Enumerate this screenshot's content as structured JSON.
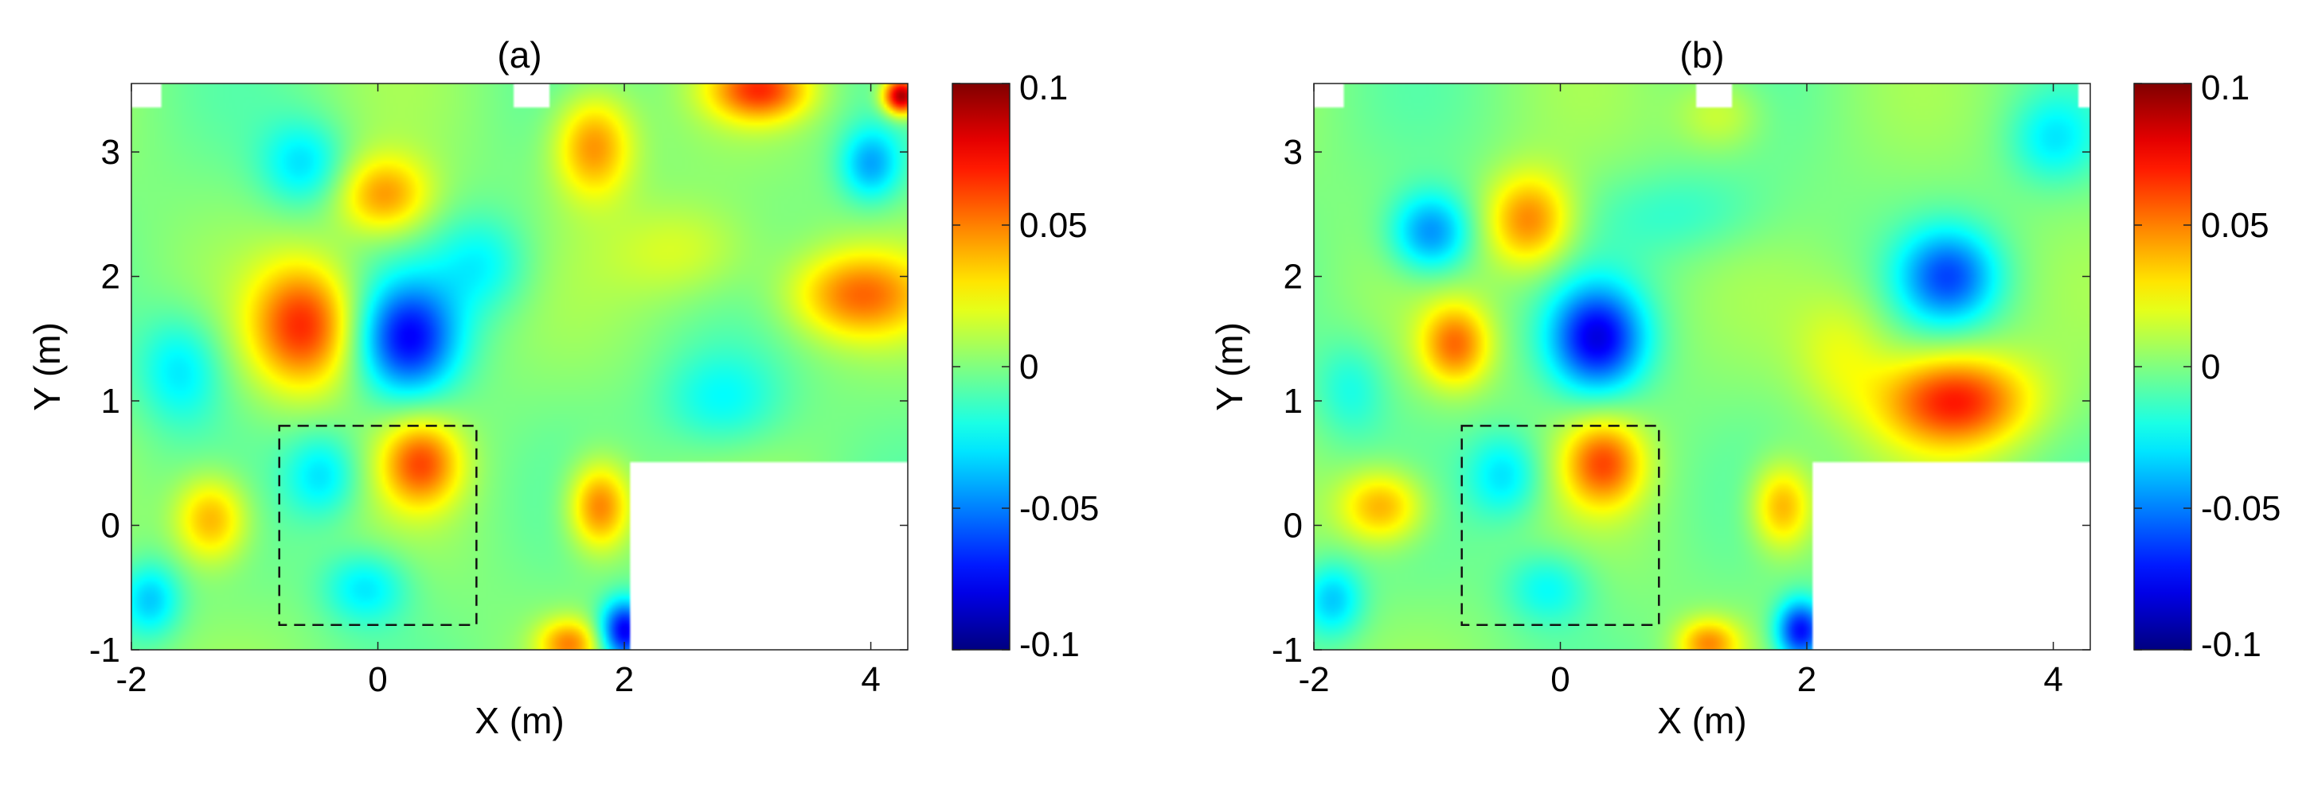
{
  "chart_data": [
    {
      "type": "heatmap",
      "title": "(a)",
      "xlabel": "X (m)",
      "ylabel": "Y (m)",
      "xlim": [
        -2,
        4.3
      ],
      "ylim": [
        -1,
        3.55
      ],
      "xticks": [
        -2,
        0,
        2,
        4
      ],
      "yticks": [
        -1,
        0,
        1,
        2,
        3
      ],
      "grid": false,
      "colorbar": {
        "clim": [
          -0.1,
          0.1
        ],
        "ticks": [
          0.1,
          0.05,
          0,
          -0.05,
          -0.1
        ],
        "tick_labels": [
          "0.1",
          "0.05",
          "0",
          "-0.05",
          "-0.1"
        ],
        "colormap": "jet"
      },
      "blank_regions": [
        [
          2.05,
          4.3,
          -1,
          0.52
        ],
        [
          -2,
          -1.75,
          3.35,
          3.55
        ],
        [
          1.1,
          1.4,
          3.35,
          3.55
        ]
      ],
      "dashed_box": [
        -0.8,
        0.8,
        -0.8,
        0.8
      ],
      "blobs": [
        {
          "x": -0.6,
          "y": 1.6,
          "value": 0.065,
          "rx": 0.42,
          "ry": 0.5
        },
        {
          "x": 0.25,
          "y": 1.5,
          "value": -0.07,
          "rx": 0.4,
          "ry": 0.45
        },
        {
          "x": 0.35,
          "y": 0.5,
          "value": 0.055,
          "rx": 0.32,
          "ry": 0.35
        },
        {
          "x": -1.35,
          "y": 0.05,
          "value": 0.045,
          "rx": 0.3,
          "ry": 0.35
        },
        {
          "x": 0.05,
          "y": 2.65,
          "value": 0.045,
          "rx": 0.38,
          "ry": 0.32
        },
        {
          "x": 1.75,
          "y": 3.05,
          "value": 0.05,
          "rx": 0.32,
          "ry": 0.42
        },
        {
          "x": 1.8,
          "y": 0.15,
          "value": 0.055,
          "rx": 0.25,
          "ry": 0.35
        },
        {
          "x": 1.55,
          "y": -0.95,
          "value": 0.045,
          "rx": 0.25,
          "ry": 0.2
        },
        {
          "x": 2.0,
          "y": -0.85,
          "value": -0.08,
          "rx": 0.2,
          "ry": 0.25
        },
        {
          "x": 3.1,
          "y": 3.5,
          "value": 0.06,
          "rx": 0.4,
          "ry": 0.25
        },
        {
          "x": 4.25,
          "y": 3.45,
          "value": 0.1,
          "rx": 0.15,
          "ry": 0.15
        },
        {
          "x": 4.0,
          "y": 2.9,
          "value": -0.04,
          "rx": 0.25,
          "ry": 0.3
        },
        {
          "x": 3.9,
          "y": 1.85,
          "value": 0.05,
          "rx": 0.55,
          "ry": 0.35
        },
        {
          "x": -1.6,
          "y": 1.25,
          "value": -0.03,
          "rx": 0.35,
          "ry": 0.45
        },
        {
          "x": -0.6,
          "y": 2.9,
          "value": -0.03,
          "rx": 0.35,
          "ry": 0.35
        },
        {
          "x": 0.85,
          "y": 2.1,
          "value": -0.025,
          "rx": 0.4,
          "ry": 0.4
        },
        {
          "x": -0.45,
          "y": 0.4,
          "value": -0.03,
          "rx": 0.3,
          "ry": 0.35
        },
        {
          "x": -0.1,
          "y": -0.5,
          "value": -0.03,
          "rx": 0.35,
          "ry": 0.3
        },
        {
          "x": 2.8,
          "y": 1.0,
          "value": -0.025,
          "rx": 0.5,
          "ry": 0.4
        },
        {
          "x": -1.85,
          "y": -0.6,
          "value": -0.035,
          "rx": 0.25,
          "ry": 0.3
        },
        {
          "x": 2.5,
          "y": 2.2,
          "value": 0.02,
          "rx": 0.6,
          "ry": 0.4
        }
      ]
    },
    {
      "type": "heatmap",
      "title": "(b)",
      "xlabel": "X (m)",
      "ylabel": "Y (m)",
      "xlim": [
        -2,
        4.3
      ],
      "ylim": [
        -1,
        3.55
      ],
      "xticks": [
        -2,
        0,
        2,
        4
      ],
      "yticks": [
        -1,
        0,
        1,
        2,
        3
      ],
      "grid": false,
      "colorbar": {
        "clim": [
          -0.1,
          0.1
        ],
        "ticks": [
          0.1,
          0.05,
          0,
          -0.05,
          -0.1
        ],
        "tick_labels": [
          "0.1",
          "0.05",
          "0",
          "-0.05",
          "-0.1"
        ],
        "colormap": "jet"
      },
      "blank_regions": [
        [
          2.05,
          4.3,
          -1,
          0.52
        ],
        [
          -2,
          -1.75,
          3.35,
          3.55
        ],
        [
          1.1,
          1.4,
          3.35,
          3.55
        ],
        [
          4.2,
          4.3,
          3.35,
          3.55
        ]
      ],
      "dashed_box": [
        -0.8,
        0.8,
        -0.8,
        0.8
      ],
      "blobs": [
        {
          "x": -1.05,
          "y": 2.35,
          "value": -0.05,
          "rx": 0.33,
          "ry": 0.33
        },
        {
          "x": -0.25,
          "y": 2.45,
          "value": 0.05,
          "rx": 0.35,
          "ry": 0.38
        },
        {
          "x": -0.85,
          "y": 1.45,
          "value": 0.05,
          "rx": 0.28,
          "ry": 0.33
        },
        {
          "x": 0.3,
          "y": 1.5,
          "value": -0.075,
          "rx": 0.38,
          "ry": 0.42
        },
        {
          "x": 0.35,
          "y": 0.5,
          "value": 0.055,
          "rx": 0.32,
          "ry": 0.35
        },
        {
          "x": -1.45,
          "y": 0.15,
          "value": 0.045,
          "rx": 0.35,
          "ry": 0.3
        },
        {
          "x": 3.15,
          "y": 2.0,
          "value": -0.055,
          "rx": 0.4,
          "ry": 0.38
        },
        {
          "x": 3.2,
          "y": 1.0,
          "value": 0.07,
          "rx": 0.6,
          "ry": 0.38
        },
        {
          "x": 1.8,
          "y": 0.15,
          "value": 0.045,
          "rx": 0.25,
          "ry": 0.35
        },
        {
          "x": 1.2,
          "y": -0.95,
          "value": 0.045,
          "rx": 0.25,
          "ry": 0.2
        },
        {
          "x": 1.95,
          "y": -0.85,
          "value": -0.075,
          "rx": 0.2,
          "ry": 0.25
        },
        {
          "x": 4.0,
          "y": 3.1,
          "value": -0.025,
          "rx": 0.35,
          "ry": 0.35
        },
        {
          "x": 1.3,
          "y": 3.3,
          "value": 0.02,
          "rx": 0.35,
          "ry": 0.3
        },
        {
          "x": 1.0,
          "y": 2.5,
          "value": -0.015,
          "rx": 0.7,
          "ry": 0.35
        },
        {
          "x": -0.45,
          "y": 0.4,
          "value": -0.03,
          "rx": 0.3,
          "ry": 0.35
        },
        {
          "x": -0.1,
          "y": -0.5,
          "value": -0.025,
          "rx": 0.35,
          "ry": 0.3
        },
        {
          "x": -1.85,
          "y": -0.6,
          "value": -0.035,
          "rx": 0.25,
          "ry": 0.3
        },
        {
          "x": 2.3,
          "y": 1.4,
          "value": 0.02,
          "rx": 0.4,
          "ry": 0.5
        },
        {
          "x": -1.7,
          "y": 1.1,
          "value": -0.02,
          "rx": 0.3,
          "ry": 0.4
        }
      ]
    }
  ]
}
